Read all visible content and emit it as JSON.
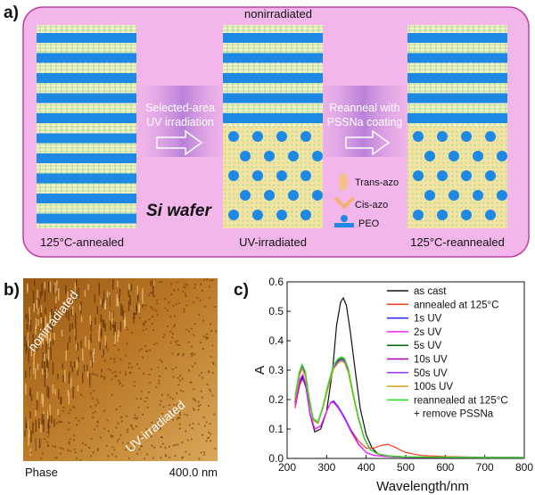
{
  "panel_labels": {
    "a": "a)",
    "b": "b)",
    "c": "c)"
  },
  "panel_a": {
    "substrate_label": "Si wafer",
    "top_label": "nonirradiated",
    "step1_caption_line1": "Selected-area",
    "step1_caption_line2": "UV irradiation",
    "step2_caption_line1": "Reanneal with",
    "step2_caption_line2": "PSSNa coating",
    "sample_labels": [
      "125°C-annealed",
      "UV-irradiated",
      "125°C-reannealed"
    ],
    "legend": {
      "trans": "Trans-azo",
      "cis": "Cis-azo",
      "peo": "PEO"
    },
    "colors": {
      "background": "#f2b6ea",
      "border": "#c040a0",
      "stripe": "#1e88e5",
      "arrow_fill": "#b57ad6",
      "peo_dot": "#1e88e5",
      "matrix": "#f4e3a0"
    }
  },
  "panel_b": {
    "image_labels": [
      "nonirradiated",
      "UV-irradiated"
    ],
    "channel_label": "Phase",
    "scale_label": "400.0 nm"
  },
  "chart_data": {
    "type": "line",
    "title": "",
    "xlabel": "Wavelength/nm",
    "ylabel": "A",
    "xlim": [
      200,
      800
    ],
    "ylim": [
      0,
      0.6
    ],
    "xticks": [
      200,
      300,
      400,
      500,
      600,
      700,
      800
    ],
    "yticks": [
      0.0,
      0.1,
      0.2,
      0.3,
      0.4,
      0.5,
      0.6
    ],
    "series": [
      {
        "name": "as cast",
        "color": "#111111",
        "x": [
          220,
          232,
          240,
          248,
          258,
          270,
          285,
          300,
          315,
          325,
          335,
          342,
          350,
          360,
          372,
          385,
          400,
          415,
          430,
          450,
          480,
          520,
          600,
          700,
          800
        ],
        "y": [
          0.19,
          0.26,
          0.28,
          0.25,
          0.15,
          0.09,
          0.1,
          0.16,
          0.3,
          0.45,
          0.53,
          0.545,
          0.52,
          0.43,
          0.3,
          0.17,
          0.08,
          0.035,
          0.015,
          0.008,
          0.005,
          0.004,
          0.003,
          0.003,
          0.003
        ]
      },
      {
        "name": "annealed at 125°C",
        "color": "#ff3b1a",
        "x": [
          220,
          232,
          240,
          248,
          258,
          270,
          285,
          300,
          310,
          318,
          330,
          345,
          360,
          380,
          400,
          420,
          440,
          455,
          470,
          500,
          540,
          600,
          700,
          800
        ],
        "y": [
          0.17,
          0.25,
          0.27,
          0.24,
          0.15,
          0.1,
          0.11,
          0.16,
          0.19,
          0.19,
          0.17,
          0.14,
          0.1,
          0.06,
          0.035,
          0.035,
          0.045,
          0.048,
          0.04,
          0.02,
          0.01,
          0.006,
          0.004,
          0.003
        ]
      },
      {
        "name": "1s UV",
        "color": "#2020ff",
        "x": [
          220,
          232,
          240,
          248,
          258,
          270,
          285,
          300,
          310,
          318,
          330,
          345,
          360,
          380,
          400,
          420,
          440,
          460,
          500,
          600,
          700,
          800
        ],
        "y": [
          0.18,
          0.26,
          0.275,
          0.24,
          0.15,
          0.1,
          0.11,
          0.16,
          0.19,
          0.195,
          0.175,
          0.14,
          0.1,
          0.05,
          0.02,
          0.01,
          0.008,
          0.006,
          0.004,
          0.003,
          0.003,
          0.003
        ]
      },
      {
        "name": "2s UV",
        "color": "#ff20ff",
        "x": [
          220,
          232,
          240,
          248,
          258,
          270,
          285,
          300,
          310,
          318,
          330,
          345,
          360,
          380,
          400,
          420,
          440,
          460,
          500,
          600,
          700,
          800
        ],
        "y": [
          0.18,
          0.27,
          0.285,
          0.25,
          0.155,
          0.1,
          0.11,
          0.16,
          0.19,
          0.19,
          0.17,
          0.135,
          0.095,
          0.048,
          0.02,
          0.01,
          0.008,
          0.006,
          0.004,
          0.003,
          0.003,
          0.003
        ]
      },
      {
        "name": "5s UV",
        "color": "#006400",
        "x": [
          220,
          230,
          238,
          246,
          256,
          266,
          278,
          290,
          305,
          318,
          330,
          338,
          345,
          355,
          368,
          380,
          395,
          410,
          430,
          460,
          500,
          600,
          700,
          800
        ],
        "y": [
          0.2,
          0.28,
          0.315,
          0.29,
          0.2,
          0.13,
          0.12,
          0.17,
          0.25,
          0.31,
          0.335,
          0.34,
          0.335,
          0.3,
          0.21,
          0.14,
          0.07,
          0.03,
          0.015,
          0.008,
          0.005,
          0.004,
          0.003,
          0.003
        ]
      },
      {
        "name": "10s UV",
        "color": "#b000b0",
        "x": [
          220,
          230,
          238,
          246,
          256,
          266,
          278,
          290,
          305,
          318,
          330,
          338,
          345,
          355,
          368,
          380,
          395,
          410,
          430,
          460,
          500,
          600,
          700,
          800
        ],
        "y": [
          0.2,
          0.28,
          0.31,
          0.285,
          0.2,
          0.13,
          0.12,
          0.17,
          0.25,
          0.31,
          0.33,
          0.335,
          0.33,
          0.295,
          0.21,
          0.14,
          0.07,
          0.03,
          0.015,
          0.008,
          0.005,
          0.004,
          0.003,
          0.003
        ]
      },
      {
        "name": "50s UV",
        "color": "#9b30ff",
        "x": [
          220,
          230,
          238,
          246,
          256,
          266,
          278,
          290,
          305,
          318,
          330,
          338,
          345,
          355,
          368,
          380,
          395,
          410,
          430,
          460,
          500,
          600,
          700,
          800
        ],
        "y": [
          0.2,
          0.28,
          0.31,
          0.285,
          0.2,
          0.13,
          0.12,
          0.17,
          0.25,
          0.31,
          0.33,
          0.335,
          0.33,
          0.295,
          0.21,
          0.14,
          0.07,
          0.03,
          0.015,
          0.008,
          0.005,
          0.004,
          0.003,
          0.003
        ]
      },
      {
        "name": "100s UV",
        "color": "#d4a017",
        "x": [
          220,
          230,
          238,
          246,
          256,
          266,
          278,
          290,
          305,
          318,
          330,
          338,
          345,
          355,
          368,
          380,
          395,
          410,
          430,
          460,
          500,
          600,
          700,
          800
        ],
        "y": [
          0.2,
          0.275,
          0.305,
          0.28,
          0.2,
          0.13,
          0.12,
          0.17,
          0.245,
          0.305,
          0.325,
          0.33,
          0.325,
          0.29,
          0.205,
          0.135,
          0.068,
          0.03,
          0.015,
          0.008,
          0.005,
          0.004,
          0.003,
          0.003
        ]
      },
      {
        "name": "reannealed at 125°C\n+ remove PSSNa",
        "color": "#20e020",
        "x": [
          220,
          230,
          238,
          246,
          256,
          266,
          278,
          290,
          305,
          318,
          330,
          338,
          345,
          355,
          368,
          380,
          395,
          410,
          430,
          460,
          500,
          600,
          700,
          800
        ],
        "y": [
          0.21,
          0.29,
          0.32,
          0.295,
          0.205,
          0.135,
          0.125,
          0.175,
          0.26,
          0.32,
          0.34,
          0.345,
          0.34,
          0.305,
          0.215,
          0.14,
          0.07,
          0.03,
          0.015,
          0.008,
          0.005,
          0.004,
          0.003,
          0.003
        ]
      }
    ]
  }
}
